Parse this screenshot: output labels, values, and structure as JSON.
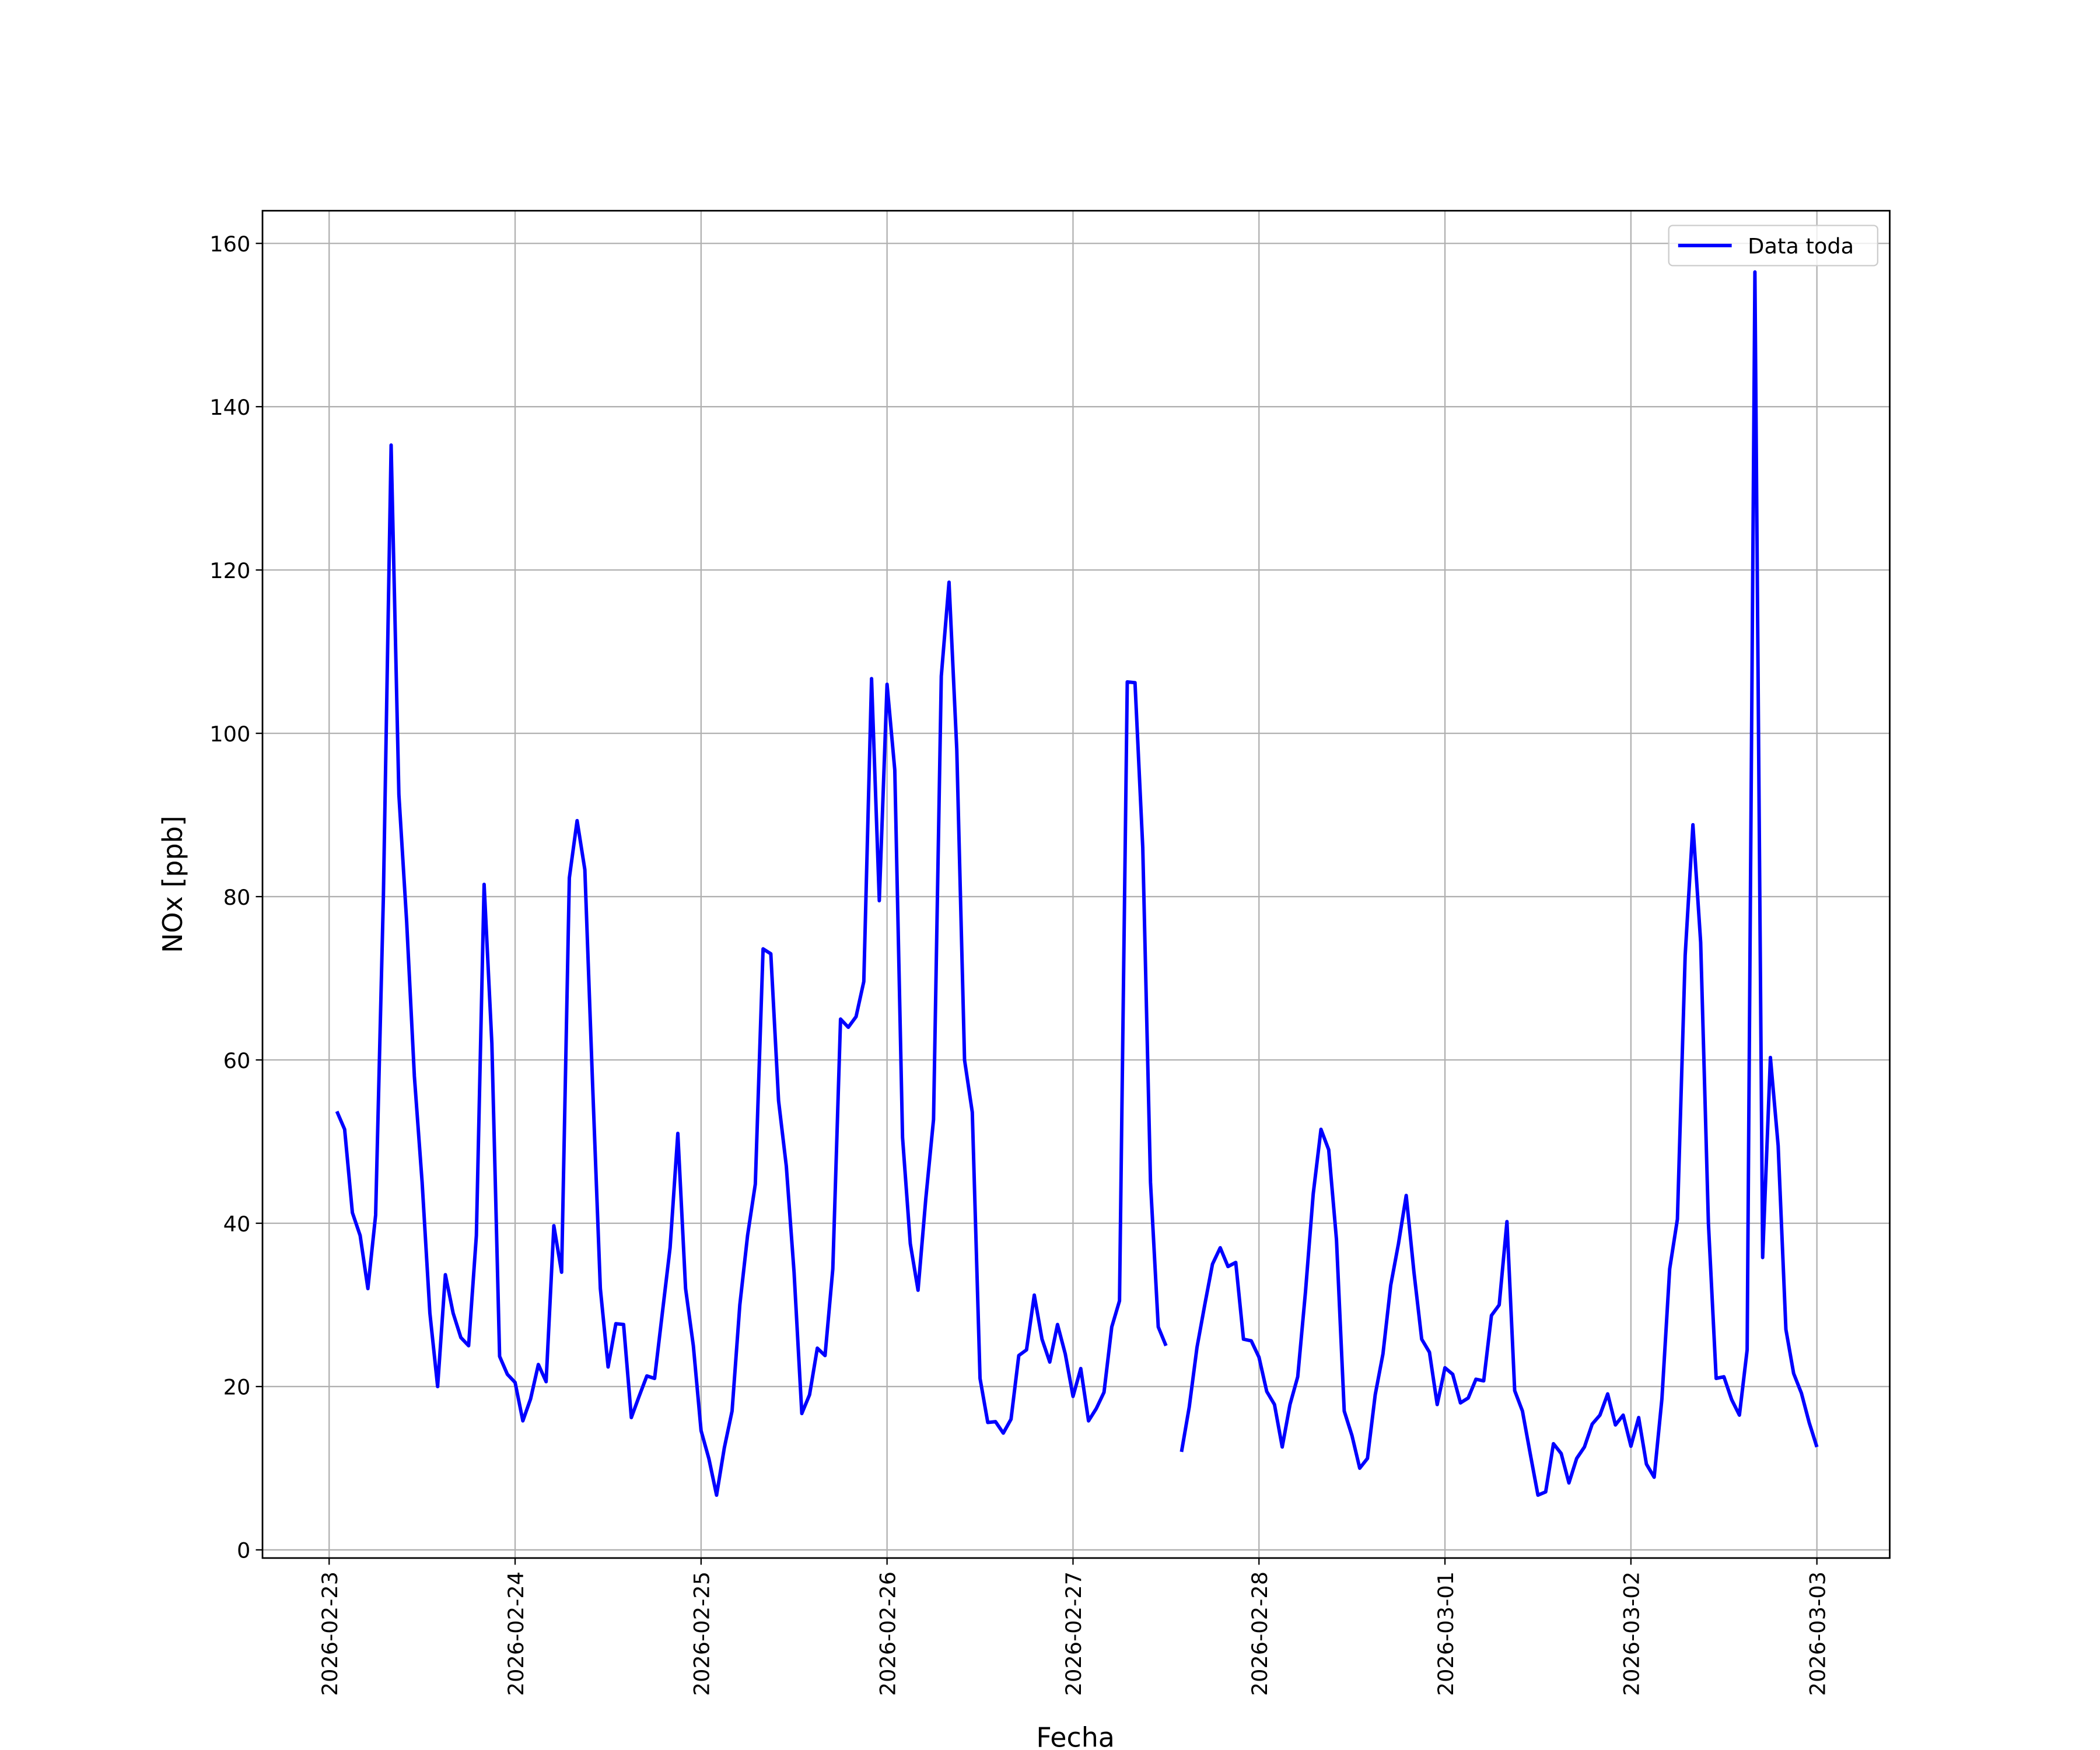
{
  "chart_data": {
    "type": "line",
    "xlabel": "Fecha",
    "ylabel": "NOx [ppb]",
    "x": [
      1,
      2,
      3,
      4,
      5,
      6,
      7,
      8,
      9,
      10,
      11,
      12,
      13,
      14,
      15,
      16,
      17,
      18,
      19,
      20,
      21,
      22,
      23,
      24,
      25,
      26,
      27,
      28,
      29,
      30,
      31,
      32,
      33,
      34,
      35,
      36,
      37,
      38,
      39,
      40,
      41,
      42,
      43,
      44,
      45,
      46,
      47,
      48,
      49,
      50,
      51,
      52,
      53,
      54,
      55,
      56,
      57,
      58,
      59,
      60,
      61,
      62,
      63,
      64,
      65,
      66,
      67,
      68,
      69,
      70,
      71,
      72,
      73,
      74,
      75,
      76,
      77,
      78,
      79,
      80,
      81,
      82,
      83,
      84,
      85,
      86,
      87,
      88,
      89,
      90,
      91,
      92,
      93,
      94,
      95,
      96,
      97,
      98,
      99,
      100,
      101,
      102,
      103,
      104,
      105,
      106,
      107,
      108,
      109,
      110,
      111,
      112,
      113,
      114,
      115,
      116,
      117,
      118,
      119,
      120,
      121,
      122,
      123,
      124,
      125,
      126,
      127,
      128,
      129,
      130,
      131,
      132,
      133,
      134,
      135,
      136,
      137,
      138,
      139,
      140,
      141,
      142,
      143,
      144,
      145,
      146,
      147,
      148,
      149,
      150,
      151,
      152,
      153,
      154,
      155,
      156,
      157,
      158,
      159,
      160,
      161,
      162,
      163,
      164,
      165,
      166,
      167,
      168,
      169,
      170,
      171,
      172,
      173,
      174,
      175,
      176,
      177,
      178,
      179,
      180,
      181,
      182,
      183,
      184,
      185,
      186,
      187,
      188,
      189,
      190,
      191,
      192
    ],
    "series": [
      {
        "name": "Data toda",
        "color": "#0000ff",
        "values": [
          53.7,
          51.5,
          41.3,
          38.5,
          32,
          41,
          80,
          135.3,
          92.5,
          77,
          58,
          45,
          29,
          20,
          33.7,
          29,
          26,
          25,
          38.5,
          81.5,
          62,
          23.7,
          21.5,
          20.5,
          15.8,
          18.5,
          22.7,
          20.6,
          39.7,
          34,
          82.3,
          89.3,
          83.3,
          57,
          32,
          22.4,
          27.7,
          27.6,
          16.2,
          18.8,
          21.3,
          21,
          29,
          37,
          51,
          32,
          25,
          14.6,
          11.2,
          6.7,
          12.5,
          17,
          30,
          38.5,
          44.8,
          73.6,
          73,
          55,
          47,
          34,
          16.7,
          19,
          24.7,
          23.8,
          34.4,
          65,
          64,
          65.3,
          69.6,
          106.7,
          79.5,
          106,
          95.5,
          50.5,
          37.5,
          31.8,
          43,
          52.7,
          107,
          118.5,
          98,
          60,
          53.6,
          21,
          15.6,
          15.7,
          14.3,
          16,
          23.8,
          24.5,
          31.2,
          25.8,
          23,
          27.6,
          24,
          18.8,
          22.2,
          15.8,
          17.3,
          19.3,
          27.3,
          30.5,
          106.3,
          106.2,
          86,
          45,
          27.3,
          25,
          null,
          12,
          17.5,
          24.8,
          30,
          35,
          37,
          34.7,
          35.2,
          25.8,
          25.6,
          23.6,
          19.4,
          17.8,
          12.6,
          17.8,
          21.2,
          31.6,
          43.6,
          51.5,
          49,
          38,
          17,
          14,
          10,
          11.2,
          19,
          24,
          32.4,
          37.5,
          43.4,
          34,
          25.8,
          24.2,
          17.8,
          22.3,
          21.5,
          18,
          18.6,
          20.9,
          20.7,
          28.7,
          30,
          40.2,
          19.5,
          17,
          11.8,
          6.7,
          7.1,
          13,
          11.8,
          8.2,
          11.2,
          12.6,
          15.4,
          16.5,
          19.1,
          15.3,
          16.5,
          12.7,
          16.2,
          10.5,
          8.9,
          18.5,
          34.4,
          40.5,
          72.8,
          88.8,
          74.4,
          40,
          21,
          21.2,
          18.4,
          16.5,
          24.5,
          156.5,
          35.8,
          60.3,
          49.5,
          27,
          21.6,
          19.2,
          15.6,
          12.6
        ]
      }
    ],
    "xlim": [
      -8.6,
      201.4
    ],
    "xticks": [
      {
        "value": 0,
        "label": "2026-02-23"
      },
      {
        "value": 24,
        "label": "2026-02-24"
      },
      {
        "value": 48,
        "label": "2026-02-25"
      },
      {
        "value": 72,
        "label": "2026-02-26"
      },
      {
        "value": 96,
        "label": "2026-02-27"
      },
      {
        "value": 120,
        "label": "2026-02-28"
      },
      {
        "value": 144,
        "label": "2026-03-01"
      },
      {
        "value": 168,
        "label": "2026-03-02"
      },
      {
        "value": 192,
        "label": "2026-03-03"
      }
    ],
    "ylim": [
      -1,
      164
    ],
    "yticks": [
      0,
      20,
      40,
      60,
      80,
      100,
      120,
      140,
      160
    ],
    "grid": true,
    "legend": "upper right"
  }
}
